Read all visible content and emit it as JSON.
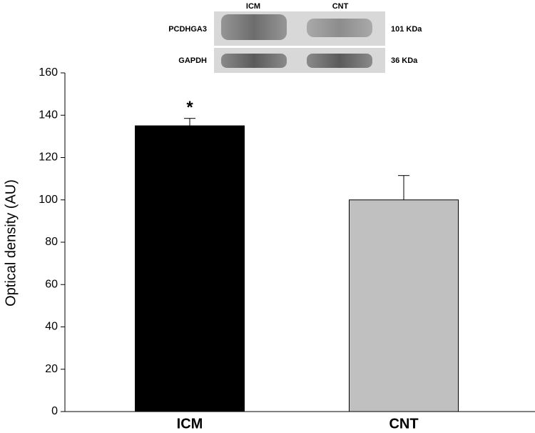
{
  "chart_data": {
    "type": "bar",
    "y_label": "Optical density (AU)",
    "categories": [
      "ICM",
      "CNT"
    ],
    "values": [
      135,
      100
    ],
    "errors": [
      3.5,
      11.5
    ],
    "colors": [
      "#000000",
      "#c0c0c0"
    ],
    "annotation": "*",
    "ylim": [
      0,
      160
    ],
    "yticks": [
      0,
      20,
      40,
      60,
      80,
      100,
      120,
      140,
      160
    ],
    "inset": {
      "lanes": [
        "ICM",
        "CNT"
      ],
      "rows": [
        {
          "label": "PCDHGA3",
          "size": "101 KDa"
        },
        {
          "label": "GAPDH",
          "size": "36 KDa"
        }
      ]
    }
  }
}
